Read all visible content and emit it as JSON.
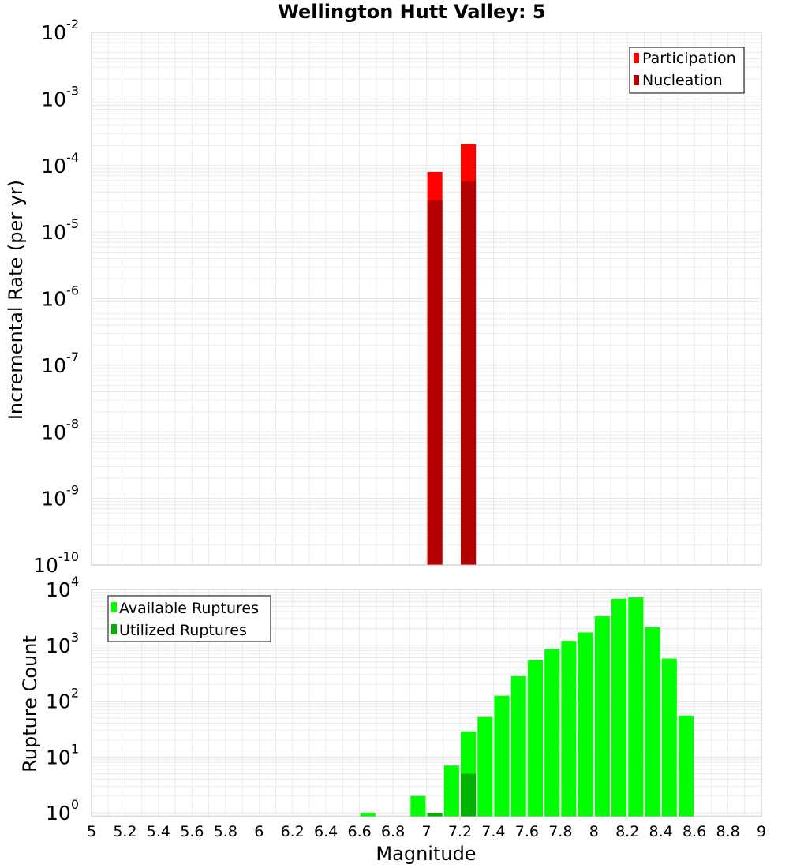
{
  "title": "Wellington Hutt Valley: 5",
  "colors": {
    "participation": "#ff0000",
    "nucleation": "#b30000",
    "available": "#00ff00",
    "utilized": "#00b300",
    "grid": "#e6e6e6",
    "frame": "#c0c0c0"
  },
  "chart_data": [
    {
      "type": "bar",
      "title": "Wellington Hutt Valley: 5",
      "xlabel": "Magnitude",
      "ylabel": "Incremental Rate (per yr)",
      "yscale": "log",
      "xlim": [
        5,
        9
      ],
      "ylim_exp": [
        -10,
        -2
      ],
      "ytick_base": "10",
      "ytick_exponents": [
        "-10",
        "-9",
        "-8",
        "-7",
        "-6",
        "-5",
        "-4",
        "-3",
        "-2"
      ],
      "bar_width": 0.09,
      "legend": [
        "Participation",
        "Nucleation"
      ],
      "legend_position": "top-right",
      "series": [
        {
          "name": "Participation",
          "x": [
            7.05,
            7.25
          ],
          "values": [
            8e-05,
            0.00021
          ]
        },
        {
          "name": "Nucleation",
          "x": [
            7.05,
            7.25
          ],
          "values": [
            3e-05,
            5.8e-05
          ]
        }
      ]
    },
    {
      "type": "bar",
      "xlabel": "Magnitude",
      "ylabel": "Rupture Count",
      "yscale": "log",
      "xlim": [
        5,
        9
      ],
      "ylim_exp": [
        -0.07,
        4
      ],
      "ytick_base": "10",
      "ytick_exponents": [
        "0",
        "1",
        "2",
        "3",
        "4"
      ],
      "x_ticks": [
        "5",
        "5.2",
        "5.4",
        "5.6",
        "5.8",
        "6",
        "6.2",
        "6.4",
        "6.6",
        "6.8",
        "7",
        "7.2",
        "7.4",
        "7.6",
        "7.8",
        "8",
        "8.2",
        "8.4",
        "8.6",
        "8.8",
        "9"
      ],
      "bar_width": 0.09,
      "legend": [
        "Available Ruptures",
        "Utilized Ruptures"
      ],
      "legend_position": "top-left",
      "series": [
        {
          "name": "Available Ruptures",
          "x": [
            6.65,
            6.95,
            7.05,
            7.15,
            7.25,
            7.35,
            7.45,
            7.55,
            7.65,
            7.75,
            7.85,
            7.95,
            8.05,
            8.15,
            8.25,
            8.35,
            8.45,
            8.55
          ],
          "values": [
            1,
            2,
            1,
            7,
            28,
            52,
            125,
            280,
            540,
            850,
            1200,
            1700,
            3300,
            6800,
            7200,
            2100,
            580,
            55
          ]
        },
        {
          "name": "Utilized Ruptures",
          "x": [
            7.05,
            7.25
          ],
          "values": [
            1,
            5
          ]
        }
      ]
    }
  ]
}
